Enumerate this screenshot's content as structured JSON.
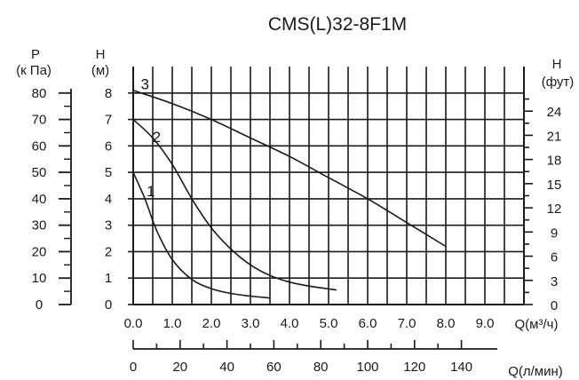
{
  "chart_data": {
    "type": "line",
    "title": "CMS(L)32-8F1M",
    "x_axis": {
      "label": "Q(м³/ч)",
      "range": [
        0,
        10
      ],
      "ticks": [
        0,
        1,
        2,
        3,
        4,
        5,
        6,
        7,
        8,
        9
      ],
      "tick_labels": [
        "0.0",
        "1.0",
        "2.0",
        "3.0",
        "4.0",
        "5.0",
        "6.0",
        "7.0",
        "8.0",
        "9.0"
      ]
    },
    "x2_axis": {
      "label": "Q(л/мин)",
      "ticks": [
        0,
        20,
        40,
        60,
        80,
        100,
        120,
        140
      ],
      "tick_labels": [
        "0",
        "20",
        "40",
        "60",
        "80",
        "100",
        "120",
        "140"
      ]
    },
    "y_axis": {
      "label": "H",
      "unit": "(м)",
      "range": [
        0,
        9
      ],
      "ticks": [
        0,
        1,
        2,
        3,
        4,
        5,
        6,
        7,
        8
      ],
      "tick_labels": [
        "0",
        "1",
        "2",
        "3",
        "4",
        "5",
        "6",
        "7",
        "8"
      ]
    },
    "y_left_outer_axis": {
      "label": "P",
      "unit": "(к Па)",
      "ticks": [
        0,
        10,
        20,
        30,
        40,
        50,
        60,
        70,
        80
      ],
      "tick_labels": [
        "0",
        "10",
        "20",
        "30",
        "40",
        "50",
        "60",
        "70",
        "80"
      ]
    },
    "y_right_axis": {
      "label": "H",
      "unit": "(фут)",
      "ticks": [
        0,
        3,
        6,
        9,
        12,
        15,
        18,
        21,
        24
      ],
      "tick_labels": [
        "0",
        "3",
        "6",
        "9",
        "12",
        "15",
        "18",
        "21",
        "24"
      ]
    },
    "grid": true,
    "series": [
      {
        "name": "1",
        "x": [
          0,
          0.3,
          0.6,
          1.0,
          1.5,
          2.0,
          2.5,
          3.0,
          3.5
        ],
        "y": [
          5.0,
          4.0,
          2.8,
          1.7,
          0.95,
          0.6,
          0.42,
          0.32,
          0.25
        ]
      },
      {
        "name": "2",
        "x": [
          0,
          0.5,
          1.0,
          1.5,
          2.0,
          2.5,
          3.0,
          3.5,
          4.0,
          4.5,
          5.2
        ],
        "y": [
          7.0,
          6.3,
          5.3,
          4.0,
          2.9,
          2.1,
          1.5,
          1.1,
          0.85,
          0.7,
          0.55
        ]
      },
      {
        "name": "3",
        "x": [
          0,
          1,
          2,
          3,
          4,
          5,
          6,
          7,
          8
        ],
        "y": [
          8.1,
          7.6,
          7.0,
          6.3,
          5.6,
          4.8,
          4.0,
          3.1,
          2.2
        ]
      }
    ]
  }
}
